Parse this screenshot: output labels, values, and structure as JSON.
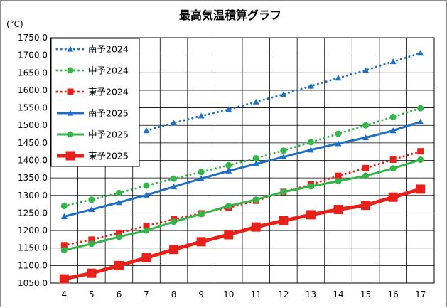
{
  "chart_data": {
    "type": "line",
    "title": "最高気温積算グラフ",
    "ylabel": "(°C)",
    "xlabel": "",
    "x": [
      4,
      5,
      6,
      7,
      8,
      9,
      10,
      11,
      12,
      13,
      14,
      15,
      16,
      17
    ],
    "ylim": [
      1050,
      1750
    ],
    "ystep": 50,
    "grid": true,
    "legend_position": "top-left",
    "series": [
      {
        "name": "南予2024",
        "color": "#1f6fc5",
        "marker": "triangle",
        "dashed": true,
        "values": [
          null,
          null,
          null,
          1485,
          1507,
          1527,
          1545,
          1567,
          1588,
          1612,
          1635,
          1657,
          1682,
          1706
        ]
      },
      {
        "name": "中予2024",
        "color": "#33b54a",
        "marker": "circle",
        "dashed": true,
        "values": [
          1270,
          1288,
          1307,
          1328,
          1348,
          1367,
          1386,
          1406,
          1428,
          1452,
          1476,
          1500,
          1524,
          1549
        ]
      },
      {
        "name": "東予2024",
        "color": "#e8201a",
        "marker": "square",
        "dashed": true,
        "values": [
          1158,
          1174,
          1193,
          1213,
          1232,
          1249,
          1265,
          1285,
          1310,
          1331,
          1356,
          1378,
          1402,
          1426
        ]
      },
      {
        "name": "南予2025",
        "color": "#1f6fc5",
        "marker": "triangle",
        "dashed": false,
        "values": [
          1240,
          1260,
          1280,
          1301,
          1325,
          1348,
          1370,
          1390,
          1410,
          1430,
          1448,
          1465,
          1485,
          1510
        ]
      },
      {
        "name": "中予2025",
        "color": "#33b54a",
        "marker": "circle",
        "dashed": false,
        "values": [
          1144,
          1162,
          1182,
          1200,
          1225,
          1247,
          1270,
          1288,
          1310,
          1326,
          1341,
          1356,
          1377,
          1402
        ]
      },
      {
        "name": "東予2025",
        "color": "#e8201a",
        "marker": "square",
        "dashed": false,
        "values": [
          1062,
          1078,
          1100,
          1122,
          1146,
          1168,
          1188,
          1210,
          1228,
          1245,
          1260,
          1272,
          1295,
          1318
        ]
      }
    ]
  }
}
